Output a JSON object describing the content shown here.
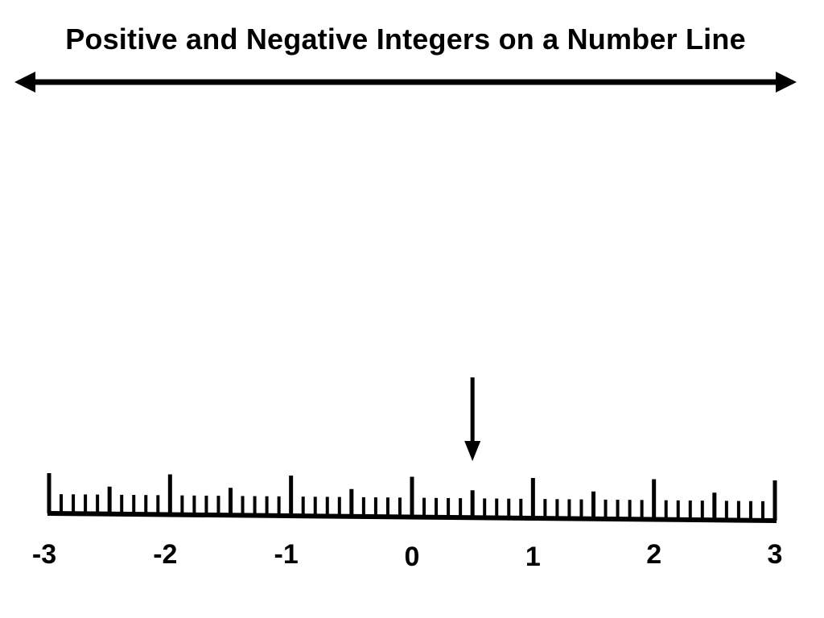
{
  "title": "Positive and Negative Integers on a Number Line",
  "number_line": {
    "min": -3,
    "max": 3,
    "minor_divisions_per_half": 5,
    "labels": [
      "-3",
      "-2",
      "-1",
      "0",
      "1",
      "2",
      "3"
    ],
    "marker_value": 0.5
  },
  "colors": {
    "ink": "#000000",
    "background": "#ffffff"
  },
  "icons": {
    "top_arrow": "double-headed-arrow-icon",
    "pointer": "down-arrow-icon"
  }
}
